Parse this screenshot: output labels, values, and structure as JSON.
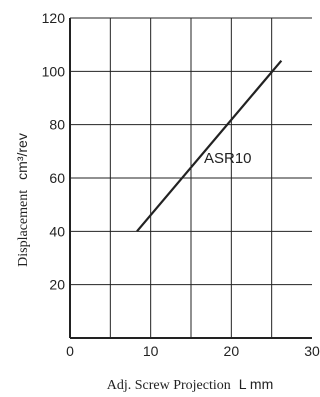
{
  "chart_data": {
    "type": "line",
    "xlabel_text": "Adj. Screw Projection",
    "xlabel_unit": "L mm",
    "ylabel_text": "Displacement",
    "ylabel_unit": "cm³/rev",
    "x_ticks": [
      "0",
      "10",
      "20",
      "30"
    ],
    "y_ticks": [
      "20",
      "40",
      "60",
      "80",
      "100",
      "120"
    ],
    "xlim": [
      0,
      30
    ],
    "ylim": [
      0,
      120
    ],
    "grid": true,
    "series": [
      {
        "name": "ASR10",
        "points": [
          [
            8.3,
            40
          ],
          [
            26.2,
            104
          ]
        ],
        "color": "#222222"
      }
    ]
  }
}
